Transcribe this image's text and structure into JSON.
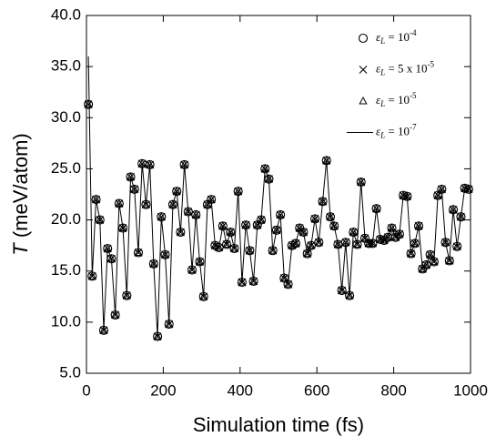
{
  "chart_data": {
    "type": "line",
    "xlabel": "Simulation time (fs)",
    "ylabel": "T (meV/atom)",
    "xlim": [
      0,
      1000
    ],
    "xticks": [
      0,
      200,
      400,
      600,
      800,
      1000
    ],
    "ylim": [
      5,
      40
    ],
    "yticks": [
      {
        "value": 5,
        "label": "5.0"
      },
      {
        "value": 10,
        "label": "10.0"
      },
      {
        "value": 15,
        "label": "15.0"
      },
      {
        "value": 20,
        "label": "20.0"
      },
      {
        "value": 25,
        "label": "25.0"
      },
      {
        "value": 30,
        "label": "30.0"
      },
      {
        "value": 35,
        "label": "35.0"
      },
      {
        "value": 40,
        "label": "40.0"
      }
    ],
    "legend": "upper right",
    "x": [
      5,
      15,
      25,
      35,
      45,
      55,
      65,
      75,
      85,
      95,
      105,
      115,
      125,
      135,
      145,
      155,
      165,
      175,
      185,
      195,
      205,
      215,
      225,
      235,
      245,
      255,
      265,
      275,
      285,
      295,
      305,
      315,
      325,
      335,
      345,
      355,
      365,
      375,
      385,
      395,
      405,
      415,
      425,
      435,
      445,
      455,
      465,
      475,
      485,
      495,
      505,
      515,
      525,
      535,
      545,
      555,
      565,
      575,
      585,
      595,
      605,
      615,
      625,
      635,
      645,
      655,
      665,
      675,
      685,
      695,
      705,
      715,
      725,
      735,
      745,
      755,
      765,
      775,
      785,
      795,
      805,
      815,
      825,
      835,
      845,
      855,
      865,
      875,
      885,
      895,
      905,
      915,
      925,
      935,
      945,
      955,
      965,
      975,
      985,
      995
    ],
    "series": [
      {
        "name": "εL = 10-4",
        "color": "#000000",
        "marker": "circle",
        "values": [
          31.3,
          14.5,
          22.0,
          20.0,
          9.2,
          17.2,
          16.2,
          10.7,
          21.6,
          19.2,
          12.6,
          24.2,
          23.0,
          16.8,
          25.5,
          21.5,
          25.4,
          15.7,
          8.6,
          20.3,
          16.6,
          9.8,
          21.5,
          22.8,
          18.8,
          25.4,
          20.8,
          15.1,
          20.5,
          15.9,
          12.5,
          21.5,
          22.0,
          17.5,
          17.3,
          19.4,
          17.6,
          18.8,
          17.2,
          22.8,
          13.9,
          19.5,
          17.0,
          14.0,
          19.5,
          20.0,
          25.0,
          24.0,
          17.0,
          19.0,
          20.5,
          14.3,
          13.7,
          17.5,
          17.7,
          19.2,
          18.8,
          16.7,
          17.5,
          20.1,
          17.8,
          21.8,
          25.8,
          20.3,
          19.4,
          17.6,
          13.1,
          17.8,
          12.6,
          18.8,
          17.6,
          23.7,
          18.2,
          17.7,
          17.7,
          21.1,
          18.1,
          18.0,
          18.3,
          19.2,
          18.3,
          18.6,
          22.4,
          22.3,
          16.7,
          17.7,
          19.4,
          15.2,
          15.6,
          16.6,
          15.9,
          22.4,
          23.0,
          17.8,
          16.0,
          21.0,
          17.4,
          20.3,
          23.1,
          23.0
        ]
      },
      {
        "name": "εL = 5 x 10-5",
        "color": "#000000",
        "marker": "x",
        "values": [
          31.3,
          14.5,
          22.0,
          20.0,
          9.2,
          17.2,
          16.2,
          10.7,
          21.6,
          19.2,
          12.6,
          24.2,
          23.0,
          16.8,
          25.5,
          21.5,
          25.4,
          15.7,
          8.6,
          20.3,
          16.6,
          9.8,
          21.5,
          22.8,
          18.8,
          25.4,
          20.8,
          15.1,
          20.5,
          15.9,
          12.5,
          21.5,
          22.0,
          17.5,
          17.3,
          19.4,
          17.6,
          18.8,
          17.2,
          22.8,
          13.9,
          19.5,
          17.0,
          14.0,
          19.5,
          20.0,
          25.0,
          24.0,
          17.0,
          19.0,
          20.5,
          14.3,
          13.7,
          17.5,
          17.7,
          19.2,
          18.8,
          16.7,
          17.5,
          20.1,
          17.8,
          21.8,
          25.8,
          20.3,
          19.4,
          17.6,
          13.1,
          17.8,
          12.6,
          18.8,
          17.6,
          23.7,
          18.2,
          17.7,
          17.7,
          21.1,
          18.1,
          18.0,
          18.3,
          19.2,
          18.3,
          18.6,
          22.4,
          22.3,
          16.7,
          17.7,
          19.4,
          15.2,
          15.6,
          16.6,
          15.9,
          22.4,
          23.0,
          17.8,
          16.0,
          21.0,
          17.4,
          20.3,
          23.1,
          23.0
        ]
      },
      {
        "name": "εL = 10-5",
        "color": "#000000",
        "marker": "triangle",
        "values": [
          31.3,
          14.5,
          22.0,
          20.0,
          9.2,
          17.2,
          16.2,
          10.7,
          21.6,
          19.2,
          12.6,
          24.2,
          23.0,
          16.8,
          25.5,
          21.5,
          25.4,
          15.7,
          8.6,
          20.3,
          16.6,
          9.8,
          21.5,
          22.8,
          18.8,
          25.4,
          20.8,
          15.1,
          20.5,
          15.9,
          12.5,
          21.5,
          22.0,
          17.5,
          17.3,
          19.4,
          17.6,
          18.8,
          17.2,
          22.8,
          13.9,
          19.5,
          17.0,
          14.0,
          19.5,
          20.0,
          25.0,
          24.0,
          17.0,
          19.0,
          20.5,
          14.3,
          13.7,
          17.5,
          17.7,
          19.2,
          18.8,
          16.7,
          17.5,
          20.1,
          17.8,
          21.8,
          25.8,
          20.3,
          19.4,
          17.6,
          13.1,
          17.8,
          12.6,
          18.8,
          17.6,
          23.7,
          18.2,
          17.7,
          17.7,
          21.1,
          18.1,
          18.0,
          18.3,
          19.2,
          18.3,
          18.6,
          22.4,
          22.3,
          16.7,
          17.7,
          19.4,
          15.2,
          15.6,
          16.6,
          15.9,
          22.4,
          23.0,
          17.8,
          16.0,
          21.0,
          17.4,
          20.3,
          23.1,
          23.0
        ]
      },
      {
        "name": "εL = 10-7",
        "color": "#000000",
        "marker": "none",
        "values": [
          36.0,
          14.5,
          22.0,
          20.0,
          9.2,
          17.2,
          16.2,
          10.7,
          21.6,
          19.2,
          12.6,
          24.2,
          23.0,
          16.8,
          25.5,
          21.5,
          25.4,
          15.7,
          8.6,
          20.3,
          16.6,
          9.8,
          21.5,
          22.8,
          18.8,
          25.4,
          20.8,
          15.1,
          20.5,
          15.9,
          12.5,
          21.5,
          22.0,
          17.5,
          17.3,
          19.4,
          17.6,
          18.8,
          17.2,
          22.8,
          13.9,
          19.5,
          17.0,
          14.0,
          19.5,
          20.0,
          25.0,
          24.0,
          17.0,
          19.0,
          20.5,
          14.3,
          13.7,
          17.5,
          17.7,
          19.2,
          18.8,
          16.7,
          17.5,
          20.1,
          17.8,
          21.8,
          25.8,
          20.3,
          19.4,
          17.6,
          13.1,
          17.8,
          12.6,
          18.8,
          17.6,
          23.7,
          18.2,
          17.7,
          17.7,
          21.1,
          18.1,
          18.0,
          18.3,
          19.2,
          18.3,
          18.6,
          22.4,
          22.3,
          16.7,
          17.7,
          19.4,
          15.2,
          15.6,
          16.6,
          15.9,
          22.4,
          23.0,
          17.8,
          16.0,
          21.0,
          17.4,
          20.3,
          23.1,
          23.0
        ]
      }
    ]
  }
}
